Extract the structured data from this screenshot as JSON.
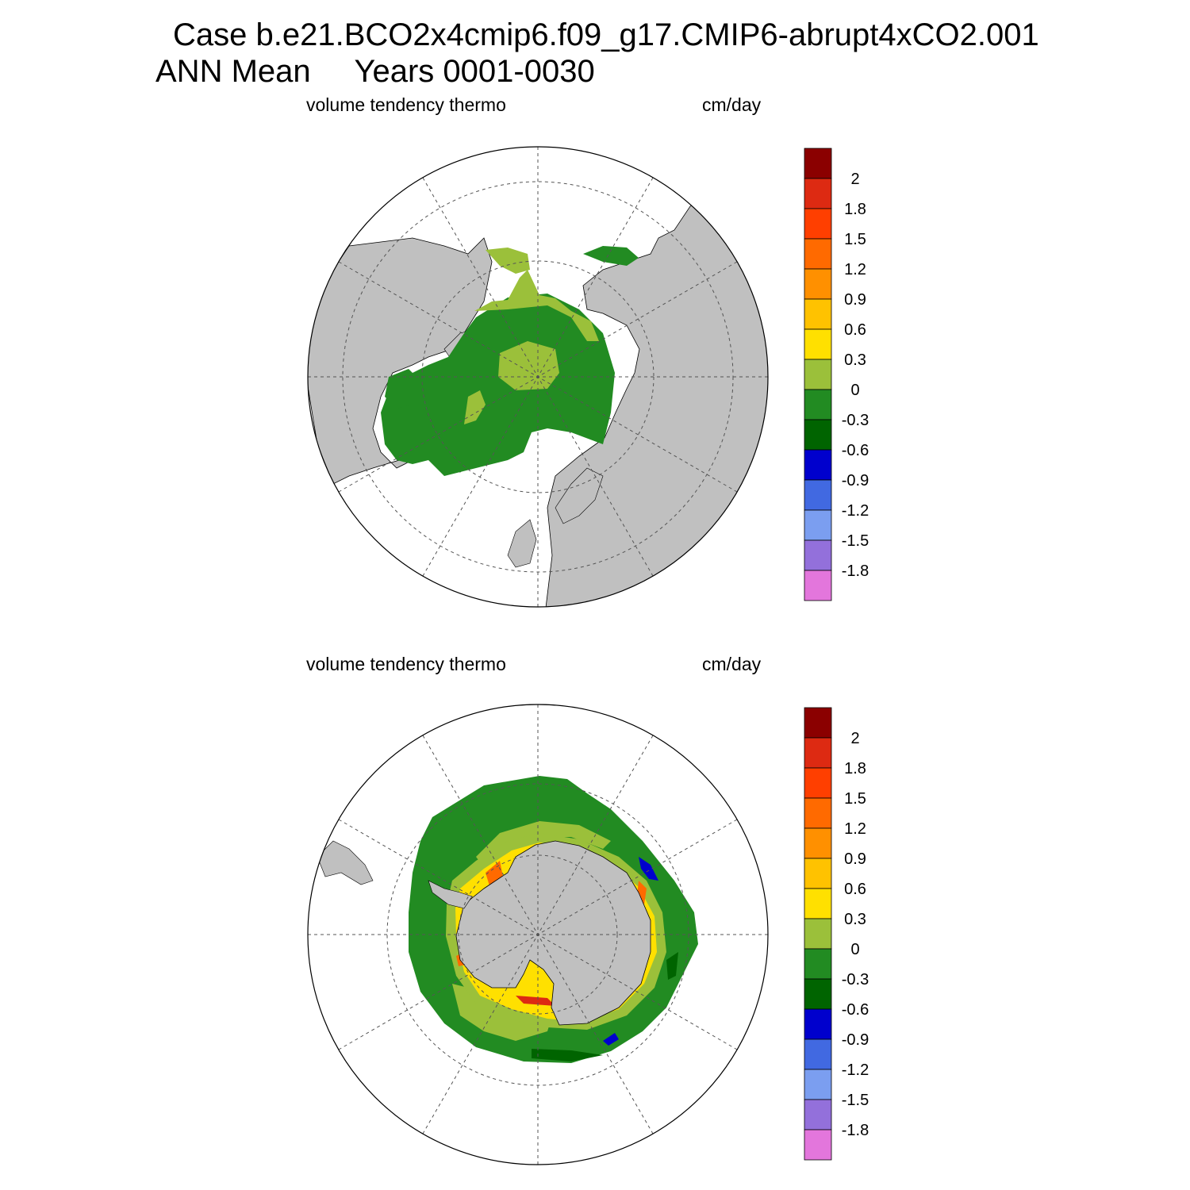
{
  "figure": {
    "title_line1": "Case b.e21.BCO2x4cmip6.f09_g17.CMIP6-abrupt4xCO2.001",
    "title_line2": "ANN Mean     Years 0001-0030"
  },
  "colors": {
    "land": "#c0c0c0",
    "ocean_no_ice": "#ffffff",
    "grid": "#555555"
  },
  "colorbar": {
    "colors": [
      "#8b0000",
      "#dd2a12",
      "#ff3f00",
      "#ff6a00",
      "#ff9000",
      "#ffc200",
      "#ffe000",
      "#9bc03a",
      "#228b22",
      "#006400",
      "#0000cd",
      "#4169e1",
      "#7b9ef0",
      "#9370db",
      "#e376dc"
    ],
    "labels": [
      "2",
      "1.8",
      "1.5",
      "1.2",
      "0.9",
      "0.6",
      "0.3",
      "0",
      "-0.3",
      "-0.6",
      "-0.9",
      "-1.2",
      "-1.5",
      "-1.8"
    ]
  },
  "panels": [
    {
      "id": "north",
      "hemisphere": "Northern Hemisphere polar stereographic",
      "variable_label": "volume tendency thermo",
      "units_label": "cm/day"
    },
    {
      "id": "south",
      "hemisphere": "Southern Hemisphere polar stereographic",
      "variable_label": "volume tendency thermo",
      "units_label": "cm/day"
    }
  ]
}
